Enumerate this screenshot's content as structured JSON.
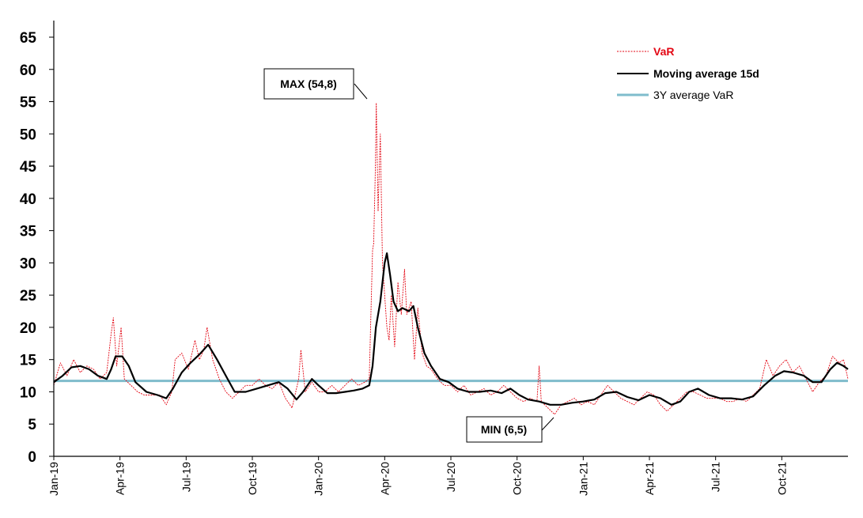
{
  "chart_data": {
    "type": "line",
    "title": "",
    "xlabel": "",
    "ylabel": "",
    "ylim": [
      0,
      65
    ],
    "yticks": [
      0,
      5,
      10,
      15,
      20,
      25,
      30,
      35,
      40,
      45,
      50,
      55,
      60,
      65
    ],
    "x_range": [
      0,
      36
    ],
    "x_unit": "months since Jan-19",
    "xticks": [
      {
        "label": "Jan-19",
        "x": 0
      },
      {
        "label": "Apr-19",
        "x": 3
      },
      {
        "label": "Jul-19",
        "x": 6
      },
      {
        "label": "Oct-19",
        "x": 9
      },
      {
        "label": "Jan-20",
        "x": 12
      },
      {
        "label": "Apr-20",
        "x": 15
      },
      {
        "label": "Jul-20",
        "x": 18
      },
      {
        "label": "Oct-20",
        "x": 21
      },
      {
        "label": "Jan-21",
        "x": 24
      },
      {
        "label": "Apr-21",
        "x": 27
      },
      {
        "label": "Jul-21",
        "x": 30
      },
      {
        "label": "Oct-21",
        "x": 33
      }
    ],
    "legend_position": "top-right",
    "series": [
      {
        "name": "VaR",
        "color": "#e30613",
        "points": [
          [
            0,
            11
          ],
          [
            0.3,
            14.5
          ],
          [
            0.6,
            12.5
          ],
          [
            0.9,
            15
          ],
          [
            1.2,
            13
          ],
          [
            1.5,
            14
          ],
          [
            1.8,
            13.5
          ],
          [
            2.1,
            12
          ],
          [
            2.4,
            13
          ],
          [
            2.6,
            19
          ],
          [
            2.7,
            21.5
          ],
          [
            2.85,
            14
          ],
          [
            3.05,
            20
          ],
          [
            3.2,
            12
          ],
          [
            3.5,
            11
          ],
          [
            3.8,
            10
          ],
          [
            4.1,
            9.5
          ],
          [
            4.5,
            9.5
          ],
          [
            4.8,
            9.5
          ],
          [
            5.1,
            8
          ],
          [
            5.35,
            10
          ],
          [
            5.5,
            15
          ],
          [
            5.8,
            16
          ],
          [
            6.1,
            13.5
          ],
          [
            6.4,
            18
          ],
          [
            6.6,
            15
          ],
          [
            6.8,
            16.5
          ],
          [
            6.95,
            20
          ],
          [
            7.2,
            15
          ],
          [
            7.5,
            12
          ],
          [
            7.8,
            10
          ],
          [
            8.1,
            9
          ],
          [
            8.4,
            10
          ],
          [
            8.7,
            11
          ],
          [
            9,
            11
          ],
          [
            9.3,
            12
          ],
          [
            9.6,
            11
          ],
          [
            9.9,
            10.5
          ],
          [
            10.2,
            11.5
          ],
          [
            10.5,
            9
          ],
          [
            10.8,
            7.5
          ],
          [
            11.1,
            12
          ],
          [
            11.2,
            16.5
          ],
          [
            11.4,
            10
          ],
          [
            11.7,
            11.5
          ],
          [
            12,
            10
          ],
          [
            12.3,
            10
          ],
          [
            12.6,
            11
          ],
          [
            12.9,
            10
          ],
          [
            13.2,
            11
          ],
          [
            13.5,
            12
          ],
          [
            13.8,
            11
          ],
          [
            14.1,
            11.5
          ],
          [
            14.3,
            12
          ],
          [
            14.45,
            32
          ],
          [
            14.5,
            33
          ],
          [
            14.58,
            45
          ],
          [
            14.62,
            54.8
          ],
          [
            14.7,
            38
          ],
          [
            14.8,
            50
          ],
          [
            14.9,
            30
          ],
          [
            15.0,
            25
          ],
          [
            15.1,
            20
          ],
          [
            15.2,
            18
          ],
          [
            15.3,
            25
          ],
          [
            15.45,
            17
          ],
          [
            15.6,
            27
          ],
          [
            15.75,
            22
          ],
          [
            15.9,
            29
          ],
          [
            16.0,
            22
          ],
          [
            16.2,
            24
          ],
          [
            16.35,
            15
          ],
          [
            16.5,
            23
          ],
          [
            16.7,
            16
          ],
          [
            16.9,
            14
          ],
          [
            17.1,
            13.5
          ],
          [
            17.4,
            12
          ],
          [
            17.7,
            11
          ],
          [
            18,
            11
          ],
          [
            18.3,
            10
          ],
          [
            18.6,
            11
          ],
          [
            18.9,
            9.5
          ],
          [
            19.2,
            10
          ],
          [
            19.5,
            10.5
          ],
          [
            19.8,
            9.5
          ],
          [
            20.1,
            10
          ],
          [
            20.4,
            11
          ],
          [
            20.7,
            10
          ],
          [
            21,
            9
          ],
          [
            21.3,
            8.5
          ],
          [
            21.6,
            9
          ],
          [
            21.9,
            8.5
          ],
          [
            22.0,
            14
          ],
          [
            22.1,
            8.5
          ],
          [
            22.4,
            7.5
          ],
          [
            22.7,
            6.5
          ],
          [
            23,
            8
          ],
          [
            23.3,
            8.5
          ],
          [
            23.6,
            9
          ],
          [
            23.9,
            8
          ],
          [
            24.2,
            8.5
          ],
          [
            24.5,
            8
          ],
          [
            24.8,
            9.5
          ],
          [
            25.1,
            11
          ],
          [
            25.4,
            10
          ],
          [
            25.7,
            9
          ],
          [
            26,
            8.5
          ],
          [
            26.3,
            8
          ],
          [
            26.6,
            9
          ],
          [
            26.9,
            10
          ],
          [
            27.2,
            9.5
          ],
          [
            27.5,
            8
          ],
          [
            27.8,
            7
          ],
          [
            28.1,
            8
          ],
          [
            28.4,
            9
          ],
          [
            28.7,
            10
          ],
          [
            29,
            10
          ],
          [
            29.3,
            9.5
          ],
          [
            29.6,
            9
          ],
          [
            29.9,
            9
          ],
          [
            30.2,
            9
          ],
          [
            30.5,
            8.5
          ],
          [
            30.8,
            8.5
          ],
          [
            31.1,
            9
          ],
          [
            31.4,
            8.5
          ],
          [
            31.7,
            9.5
          ],
          [
            32,
            10.5
          ],
          [
            32.3,
            15
          ],
          [
            32.6,
            12.5
          ],
          [
            32.9,
            14
          ],
          [
            33.2,
            15
          ],
          [
            33.5,
            13
          ],
          [
            33.8,
            14
          ],
          [
            34.1,
            12
          ],
          [
            34.4,
            10
          ],
          [
            34.7,
            11.5
          ],
          [
            35,
            12.5
          ],
          [
            35.3,
            15.5
          ],
          [
            35.6,
            14.5
          ],
          [
            35.8,
            15
          ],
          [
            36,
            12
          ]
        ]
      },
      {
        "name": "Moving average 15d",
        "color": "#000000",
        "points": [
          [
            0,
            11.5
          ],
          [
            0.4,
            12.5
          ],
          [
            0.8,
            13.8
          ],
          [
            1.2,
            14
          ],
          [
            1.6,
            13.5
          ],
          [
            2,
            12.5
          ],
          [
            2.4,
            12
          ],
          [
            2.6,
            13.5
          ],
          [
            2.8,
            15.5
          ],
          [
            3.1,
            15.5
          ],
          [
            3.4,
            14
          ],
          [
            3.7,
            11.5
          ],
          [
            4.2,
            10
          ],
          [
            4.7,
            9.5
          ],
          [
            5.1,
            9
          ],
          [
            5.4,
            10.5
          ],
          [
            5.8,
            13
          ],
          [
            6.2,
            14.5
          ],
          [
            6.6,
            15.8
          ],
          [
            7,
            17.3
          ],
          [
            7.4,
            15
          ],
          [
            7.8,
            12.5
          ],
          [
            8.2,
            10
          ],
          [
            8.7,
            10
          ],
          [
            9.2,
            10.5
          ],
          [
            9.7,
            11
          ],
          [
            10.2,
            11.5
          ],
          [
            10.6,
            10.5
          ],
          [
            11,
            8.8
          ],
          [
            11.3,
            10
          ],
          [
            11.7,
            12
          ],
          [
            12,
            11
          ],
          [
            12.4,
            9.8
          ],
          [
            12.8,
            9.8
          ],
          [
            13.2,
            10
          ],
          [
            13.6,
            10.2
          ],
          [
            14,
            10.5
          ],
          [
            14.3,
            11
          ],
          [
            14.45,
            14
          ],
          [
            14.6,
            20
          ],
          [
            14.8,
            24
          ],
          [
            15.0,
            30
          ],
          [
            15.1,
            31.5
          ],
          [
            15.25,
            28
          ],
          [
            15.4,
            24
          ],
          [
            15.6,
            22.5
          ],
          [
            15.8,
            23
          ],
          [
            16.1,
            22.5
          ],
          [
            16.3,
            23.3
          ],
          [
            16.5,
            20
          ],
          [
            16.8,
            16
          ],
          [
            17.1,
            14
          ],
          [
            17.5,
            12
          ],
          [
            17.9,
            11.5
          ],
          [
            18.3,
            10.5
          ],
          [
            18.8,
            10
          ],
          [
            19.3,
            10
          ],
          [
            19.8,
            10.2
          ],
          [
            20.3,
            9.8
          ],
          [
            20.7,
            10.5
          ],
          [
            21.1,
            9.5
          ],
          [
            21.5,
            8.8
          ],
          [
            22,
            8.5
          ],
          [
            22.5,
            8
          ],
          [
            23,
            8
          ],
          [
            23.5,
            8.3
          ],
          [
            24,
            8.5
          ],
          [
            24.5,
            8.8
          ],
          [
            25,
            9.8
          ],
          [
            25.5,
            10
          ],
          [
            26,
            9.2
          ],
          [
            26.5,
            8.7
          ],
          [
            27,
            9.5
          ],
          [
            27.5,
            9
          ],
          [
            28,
            8
          ],
          [
            28.4,
            8.5
          ],
          [
            28.8,
            10
          ],
          [
            29.2,
            10.5
          ],
          [
            29.7,
            9.5
          ],
          [
            30.2,
            9
          ],
          [
            30.7,
            9
          ],
          [
            31.2,
            8.8
          ],
          [
            31.7,
            9.3
          ],
          [
            32.2,
            11
          ],
          [
            32.7,
            12.5
          ],
          [
            33.1,
            13.2
          ],
          [
            33.5,
            13
          ],
          [
            34,
            12.5
          ],
          [
            34.4,
            11.5
          ],
          [
            34.8,
            11.5
          ],
          [
            35.2,
            13.5
          ],
          [
            35.5,
            14.5
          ],
          [
            35.8,
            14
          ],
          [
            36,
            13.5
          ]
        ]
      },
      {
        "name": "3Y average VaR",
        "color": "#7fbccc",
        "points": [
          [
            0,
            11.7
          ],
          [
            36,
            11.7
          ]
        ]
      }
    ],
    "annotations": [
      {
        "label": "MAX (54,8)",
        "x": 14.62,
        "y": 54.8
      },
      {
        "label": "MIN (6,5)",
        "x": 22.7,
        "y": 6.5
      }
    ]
  }
}
